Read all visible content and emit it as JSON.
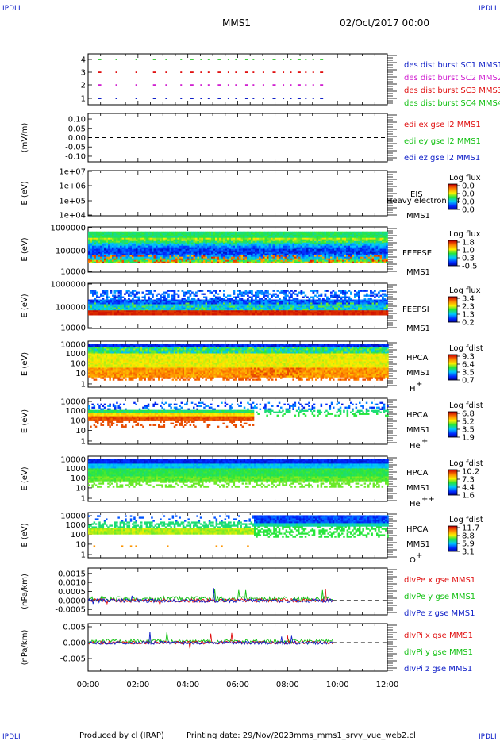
{
  "header": {
    "corner_tl": "IPDLI",
    "corner_tr": "IPDLI",
    "corner_bl": "IPDLI",
    "corner_br": "IPDLI",
    "mission": "MMS1",
    "datetime": "02/Oct/2017 00:00"
  },
  "footer": {
    "credit": "Produced by cl (IRAP)",
    "printing": "Printing date: 29/Nov/2023",
    "file": "mms_mms1_srvy_vue_web2.cl"
  },
  "colors": {
    "blue": "#1020c8",
    "magenta": "#d020d0",
    "red": "#e01010",
    "green": "#10c010"
  },
  "chart_data": [
    {
      "type": "scatter",
      "id": "burst",
      "yticks": [
        "4",
        "3",
        "2",
        "1"
      ],
      "legend": [
        "des dist burst SC1 MMS1",
        "des dist burst SC2 MMS2",
        "des dist burst SC3 MMS3",
        "des dist burst SC4 MMS4"
      ],
      "legend_colors": [
        "#1020c8",
        "#d020d0",
        "#e01010",
        "#10c010"
      ],
      "x_hours": [
        0.4,
        1.1,
        1.9,
        2.6,
        3.1,
        3.7,
        4.1,
        4.5,
        4.8,
        5.2,
        5.6,
        5.9,
        6.3,
        6.6,
        7.0,
        7.4,
        7.8,
        8.1,
        8.4,
        8.7,
        9.0,
        9.3
      ]
    },
    {
      "type": "line",
      "id": "edi",
      "ylabel": "(mV/m)",
      "yticks": [
        "0.10",
        "0.05",
        "0.00",
        "-0.05",
        "-0.10"
      ],
      "ylim": [
        -0.13,
        0.13
      ],
      "legend": [
        "edi ex gse l2 MMS1",
        "edi ey gse l2 MMS1",
        "edi ez gse l2 MMS1"
      ],
      "legend_colors": [
        "#e01010",
        "#10c010",
        "#1020c8"
      ]
    },
    {
      "type": "heatmap",
      "id": "eis",
      "ylabel": "E (eV)",
      "yticks": [
        "1e+07",
        "1e+06",
        "1e+05",
        "1e+04"
      ],
      "instrument": "EIS",
      "instrument2": "MMS1",
      "overlay": "Heavy electron tof",
      "cb_title": "Log flux",
      "cb_ticks": [
        "0.0",
        "0.0",
        "0.0",
        "0.0"
      ]
    },
    {
      "type": "heatmap",
      "id": "feepse",
      "ylabel": "E (eV)",
      "yticks": [
        "1000000",
        "100000",
        "10000"
      ],
      "instrument": "FEEPSE",
      "instrument2": "MMS1",
      "cb_title": "Log flux",
      "cb_ticks": [
        "1.8",
        "1.0",
        "0.3",
        "-0.5"
      ]
    },
    {
      "type": "heatmap",
      "id": "feepsi",
      "ylabel": "E (eV)",
      "yticks": [
        "1000000",
        "100000",
        "10000"
      ],
      "instrument": "FEEPSI",
      "instrument2": "MMS1",
      "cb_title": "Log flux",
      "cb_ticks": [
        "3.4",
        "2.3",
        "1.3",
        "0.2"
      ]
    },
    {
      "type": "heatmap",
      "id": "hpca_h",
      "ylabel": "E (eV)",
      "yticks": [
        "10000",
        "1000",
        "100",
        "10",
        "1"
      ],
      "instrument": "HPCA",
      "instrument2": "MMS1",
      "species": "H",
      "charge": "+",
      "cb_title": "Log fdist",
      "cb_ticks": [
        "9.3",
        "6.4",
        "3.5",
        "0.7"
      ]
    },
    {
      "type": "heatmap",
      "id": "hpca_he",
      "ylabel": "E (eV)",
      "yticks": [
        "10000",
        "1000",
        "100",
        "10",
        "1"
      ],
      "instrument": "HPCA",
      "instrument2": "MMS1",
      "species": "He",
      "charge": "+",
      "cb_title": "Log fdist",
      "cb_ticks": [
        "6.8",
        "5.2",
        "3.5",
        "1.9"
      ]
    },
    {
      "type": "heatmap",
      "id": "hpca_hepp",
      "ylabel": "E (eV)",
      "yticks": [
        "10000",
        "1000",
        "100",
        "10",
        "1"
      ],
      "instrument": "HPCA",
      "instrument2": "MMS1",
      "species": "He",
      "charge": "++",
      "cb_title": "Log fdist",
      "cb_ticks": [
        "10.2",
        "7.3",
        "4.4",
        "1.6"
      ]
    },
    {
      "type": "heatmap",
      "id": "hpca_o",
      "ylabel": "E (eV)",
      "yticks": [
        "10000",
        "1000",
        "100",
        "10",
        "1"
      ],
      "instrument": "HPCA",
      "instrument2": "MMS1",
      "species": "O",
      "charge": "+",
      "cb_title": "Log fdist",
      "cb_ticks": [
        "11.7",
        "8.8",
        "5.9",
        "3.1"
      ]
    },
    {
      "type": "line",
      "id": "divpe",
      "ylabel": "(nPa/km)",
      "yticks": [
        "0.0015",
        "0.0010",
        "0.0005",
        "0.0000",
        "-0.0005"
      ],
      "ylim": [
        -0.0008,
        0.0018
      ],
      "legend": [
        "dIvPe x gse MMS1",
        "dIvPe y gse MMS1",
        "dIvPe z gse MMS1"
      ],
      "legend_colors": [
        "#e01010",
        "#10c010",
        "#1020c8"
      ],
      "data_end_hour": 9.8
    },
    {
      "type": "line",
      "id": "divpi",
      "ylabel": "(nPa/km)",
      "yticks": [
        "0.005",
        "0.000",
        "-0.005"
      ],
      "ylim": [
        -0.009,
        0.006
      ],
      "legend": [
        "dIvPi x gse MMS1",
        "dIvPi y gse MMS1",
        "dIvPi z gse MMS1"
      ],
      "legend_colors": [
        "#e01010",
        "#10c010",
        "#1020c8"
      ],
      "data_end_hour": 9.8
    }
  ],
  "time_axis": {
    "labels": [
      "00:00",
      "02:00",
      "04:00",
      "06:00",
      "08:00",
      "10:00",
      "12:00"
    ],
    "xlim_hours": [
      0,
      12
    ]
  }
}
